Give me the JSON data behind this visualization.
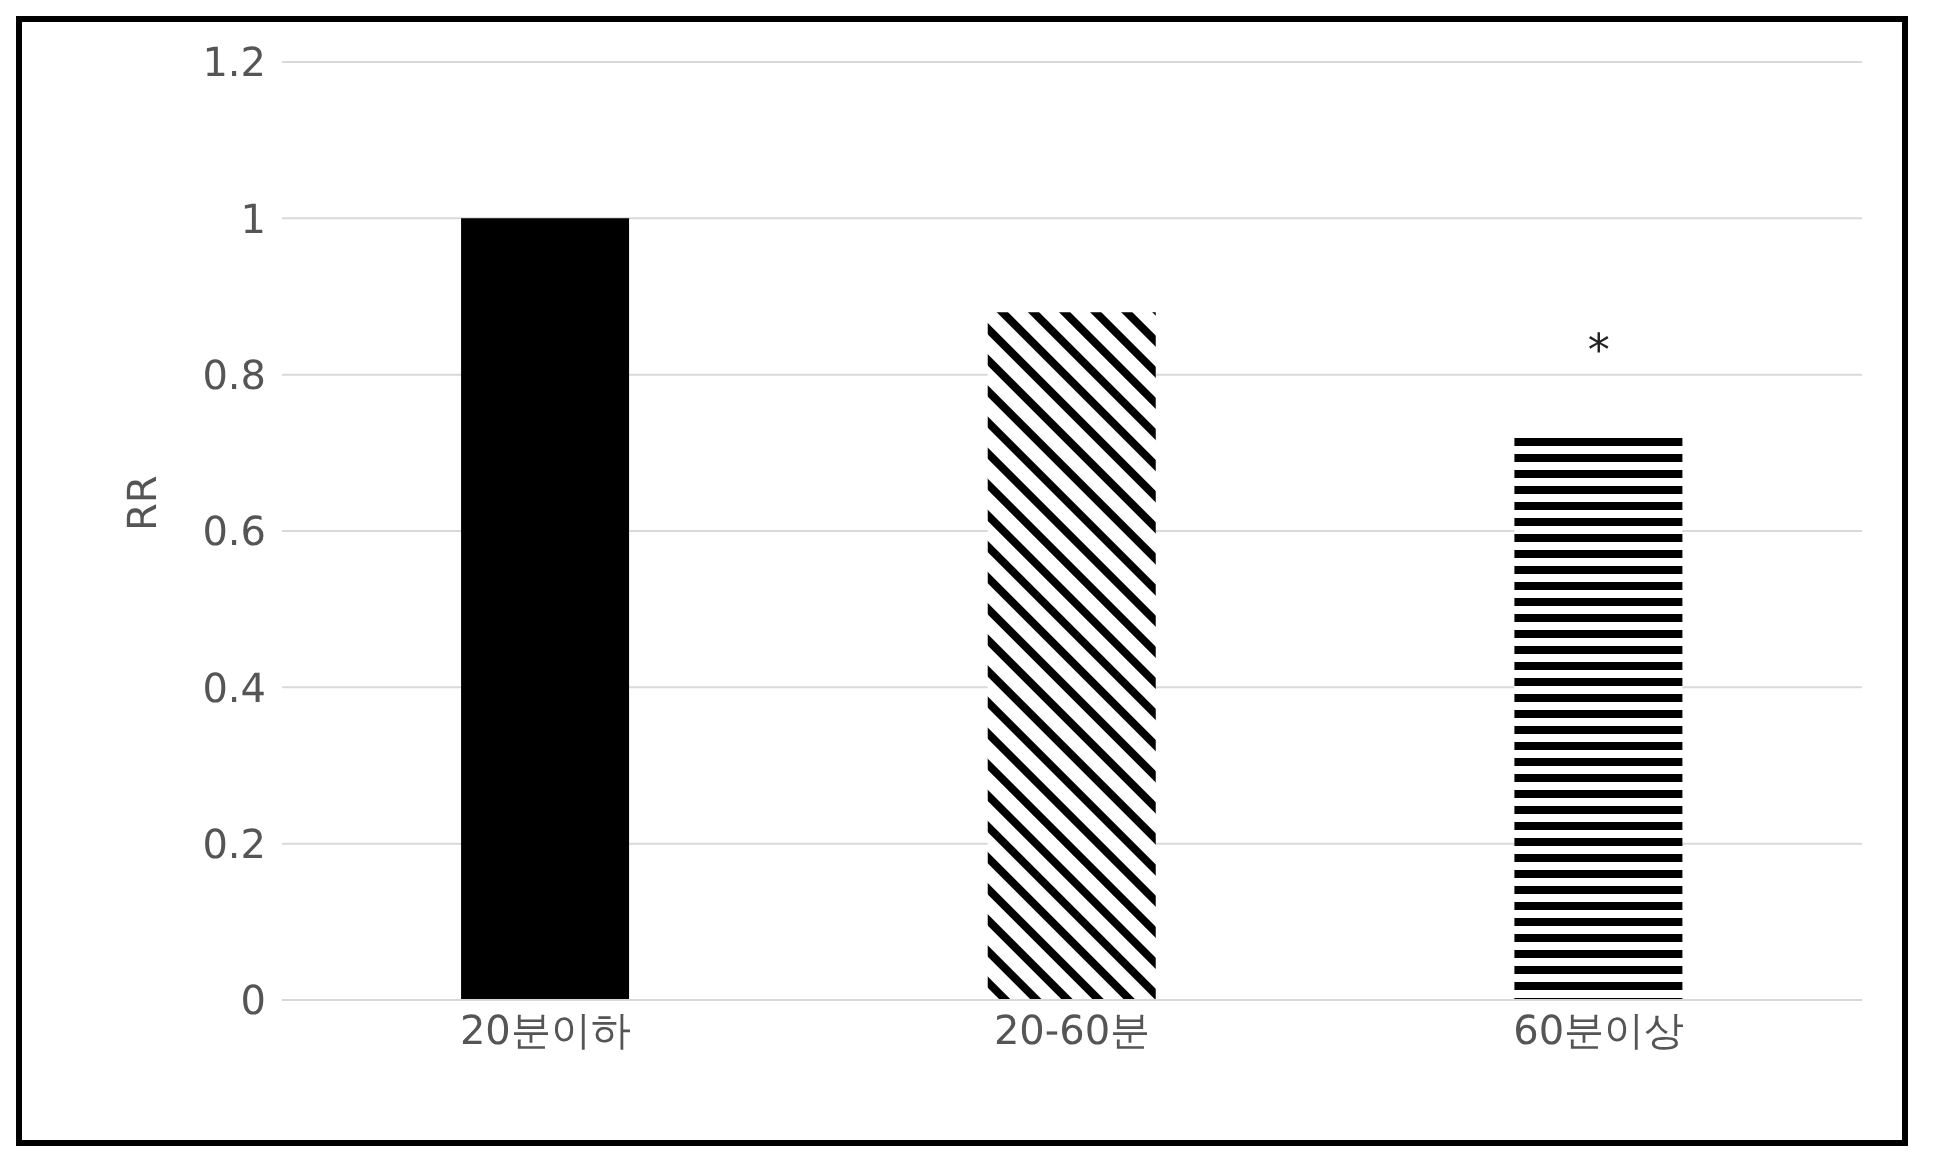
{
  "chart_data": {
    "type": "bar",
    "ylabel": "RR",
    "categories": [
      "20분이하",
      "20-60분",
      "60분이상"
    ],
    "values": [
      1,
      0.88,
      0.72
    ],
    "colors": [
      "#000000",
      "#000000",
      "#000000"
    ],
    "ylim": [
      0,
      1.2
    ],
    "yticks": [
      0,
      0.2,
      0.4,
      0.6,
      0.8,
      1,
      1.2
    ],
    "grid": "y",
    "legend": false,
    "annotations": [
      "*"
    ]
  }
}
